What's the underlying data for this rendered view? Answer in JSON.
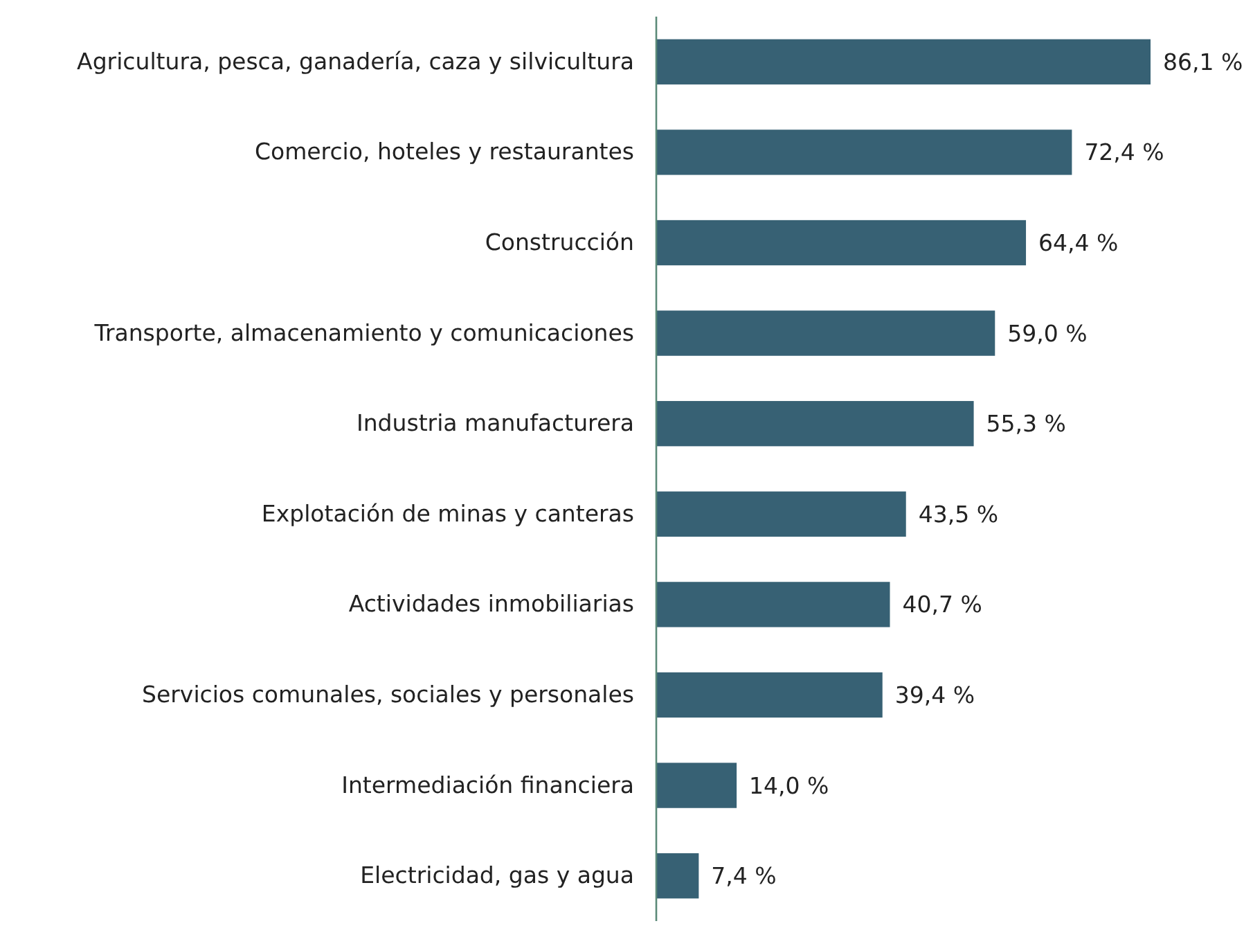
{
  "chart_data": {
    "type": "bar",
    "orientation": "horizontal",
    "data_labels": true,
    "categories": [
      "Agricultura, pesca, ganadería, caza y silvicultura",
      "Comercio, hoteles y restaurantes",
      "Construcción",
      "Transporte, almacenamiento y comunicaciones",
      "Industria manufacturera",
      "Explotación de minas y canteras",
      "Actividades inmobiliarias",
      "Servicios comunales, sociales y personales",
      "Intermediación financiera",
      "Electricidad, gas y agua"
    ],
    "values": [
      86.1,
      72.4,
      64.4,
      59.0,
      55.3,
      43.5,
      40.7,
      39.4,
      14.0,
      7.4
    ],
    "value_labels": [
      "86,1 %",
      "72,4 %",
      "64,4 %",
      "59,0 %",
      "55,3 %",
      "43,5 %",
      "40,7 %",
      "39,4 %",
      "14,0 %",
      "7,4 %"
    ],
    "color": "#376174"
  }
}
